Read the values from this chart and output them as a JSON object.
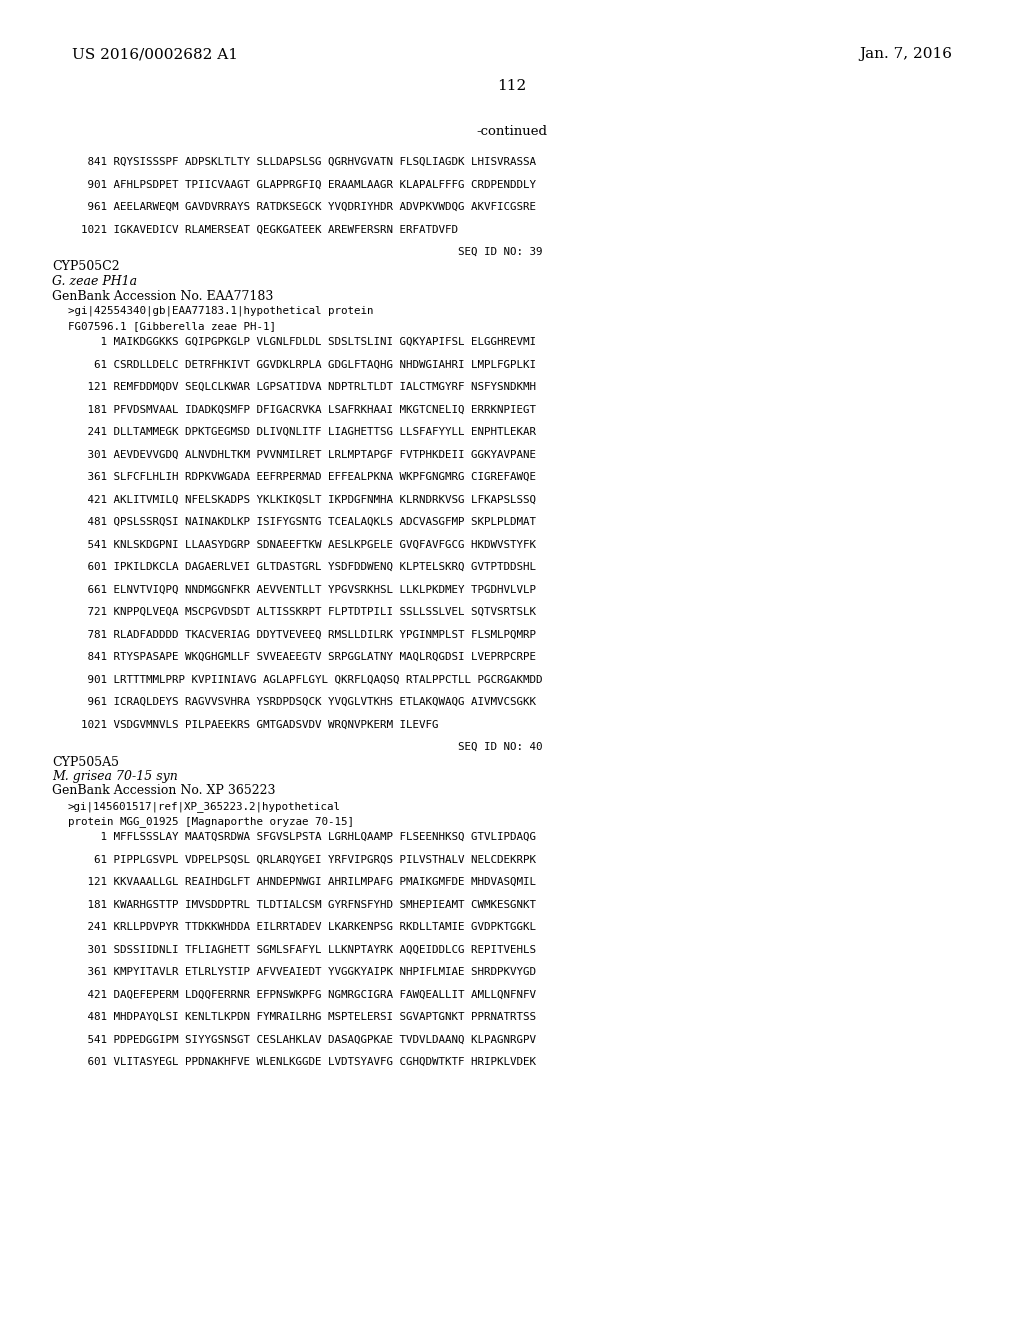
{
  "header_left": "US 2016/0002682 A1",
  "header_right": "Jan. 7, 2016",
  "page_number": "112",
  "continued": "-continued",
  "background_color": "#ffffff",
  "text_color": "#000000",
  "lines": [
    {
      "text": "   841 RQYSISSSPF ADPSKLTLTY SLLDAPSLSG QGRHVGVATN FLSQLIAGDK LHISVRASSA",
      "mono": true,
      "gap_after": true
    },
    {
      "text": "   901 AFHLPSDPET TPIICVAAGT GLAPPRGFIQ ERAAMLAAGR KLAPALFFFG CRDPENDDLY",
      "mono": true,
      "gap_after": true
    },
    {
      "text": "   961 AEELARWEQM GAVDVRRAYS RATDKSEGCK YVQDRIYHDR ADVPKVWDQG AKVFICGSRE",
      "mono": true,
      "gap_after": true
    },
    {
      "text": "  1021 IGKAVEDICV RLAMERSEAT QEGKGATEEK AREWFERSRN ERFATDVFD",
      "mono": true,
      "gap_after": true
    },
    {
      "text": "                                                            SEQ ID NO: 39",
      "mono": true,
      "gap_after": false
    },
    {
      "text": "CYP505C2",
      "mono": false,
      "gap_after": false
    },
    {
      "text": "G. zeae PH1a",
      "mono": false,
      "italic": true,
      "gap_after": false
    },
    {
      "text": "GenBank Accession No. EAA77183",
      "mono": false,
      "gap_after": false
    },
    {
      "text": ">gi|42554340|gb|EAA77183.1|hypothetical protein",
      "mono": true,
      "gap_after": false
    },
    {
      "text": "FG07596.1 [Gibberella zeae PH-1]",
      "mono": true,
      "gap_after": false
    },
    {
      "text": "     1 MAIKDGGKKS GQIPGPKGLP VLGNLFDLDL SDSLTSLINI GQKYAPIFSL ELGGHREVMI",
      "mono": true,
      "gap_after": true
    },
    {
      "text": "    61 CSRDLLDELC DETRFHKIVT GGVDKLRPLA GDGLFTAQHG NHDWGIAHRI LMPLFGPLKI",
      "mono": true,
      "gap_after": true
    },
    {
      "text": "   121 REMFDDMQDV SEQLCLKWAR LGPSATIDVA NDPTRLTLDT IALCTMGYRF NSFYSNDKMH",
      "mono": true,
      "gap_after": true
    },
    {
      "text": "   181 PFVDSMVAAL IDADKQSMFP DFIGACRVKA LSAFRKHAAI MKGTCNELIQ ERRKNPIEGT",
      "mono": true,
      "gap_after": true
    },
    {
      "text": "   241 DLLTAMMEGK DPKTGEGMSD DLIVQNLITF LIAGHETTSG LLSFAFYYLL ENPHTLEKAR",
      "mono": true,
      "gap_after": true
    },
    {
      "text": "   301 AEVDEVVGDQ ALNVDHLTKM PVVNMILRET LRLMPTAPGF FVTPHKDEII GGKYAVPANE",
      "mono": true,
      "gap_after": true
    },
    {
      "text": "   361 SLFCFLHLIH RDPKVWGADA EEFRPERMAD EFFEALPKNA WKPFGNGMRG CIGREFAWQE",
      "mono": true,
      "gap_after": true
    },
    {
      "text": "   421 AKLITVMILQ NFELSKADPS YKLKIKQSLT IKPDGFNMHA KLRNDRKVSG LFKAPSLSSQ",
      "mono": true,
      "gap_after": true
    },
    {
      "text": "   481 QPSLSSRQSI NAINAKDLKP ISIFYGSNTG TCEALAQKLS ADCVASGFMP SKPLPLDMAT",
      "mono": true,
      "gap_after": true
    },
    {
      "text": "   541 KNLSKDGPNI LLAASYDGRP SDNAEEFTKW AESLKPGELE GVQFAVFGCG HKDWVSTYFK",
      "mono": true,
      "gap_after": true
    },
    {
      "text": "   601 IPKILDKCLA DAGAERLVEI GLTDASTGRL YSDFDDWENQ KLPTELSKRQ GVTPTDDSHL",
      "mono": true,
      "gap_after": true
    },
    {
      "text": "   661 ELNVTVIQPQ NNDMGGNFKR AEVVENTLLT YPGVSRKHSL LLKLPKDMEY TPGDHVLVLP",
      "mono": true,
      "gap_after": true
    },
    {
      "text": "   721 KNPPQLVEQA MSCPGVDSDT ALTISSKRPT FLPTDTPILI SSLLSSLVEL SQTVSRTSLK",
      "mono": true,
      "gap_after": true
    },
    {
      "text": "   781 RLADFADDDD TKACVERIAG DDYTVEVEEQ RMSLLDILRK YPGINMPLST FLSMLPQMRP",
      "mono": true,
      "gap_after": true
    },
    {
      "text": "   841 RTYSPASAPE WKQGHGMLLF SVVEAEEGTV SRPGGLATNY MAQLRQGDSI LVEPRPCRPE",
      "mono": true,
      "gap_after": true
    },
    {
      "text": "   901 LRTTTMMLPRP KVPIINIAVG AGLAPFLGYL QKRFLQAQSQ RTALPPCTLL PGCRGAKMDD",
      "mono": true,
      "gap_after": true
    },
    {
      "text": "   961 ICRAQLDEYS RAGVVSVHRA YSRDPDSQCK YVQGLVTKHS ETLAKQWAQG AIVMVCSGKK",
      "mono": true,
      "gap_after": true
    },
    {
      "text": "  1021 VSDGVMNVLS PILPAEEKRS GMTGADSVDV WRQNVPKERM ILEVFG",
      "mono": true,
      "gap_after": true
    },
    {
      "text": "                                                            SEQ ID NO: 40",
      "mono": true,
      "gap_after": false
    },
    {
      "text": "CYP505A5",
      "mono": false,
      "gap_after": false
    },
    {
      "text": "M. grisea 70-15 syn",
      "mono": false,
      "italic": true,
      "gap_after": false
    },
    {
      "text": "GenBank Accession No. XP 365223",
      "mono": false,
      "gap_after": false
    },
    {
      "text": ">gi|145601517|ref|XP_365223.2|hypothetical",
      "mono": true,
      "gap_after": false
    },
    {
      "text": "protein MGG_01925 [Magnaporthe oryzae 70-15]",
      "mono": true,
      "gap_after": false
    },
    {
      "text": "     1 MFFLSSSLAY MAATQSRDWA SFGVSLPSTA LGRHLQAAMP FLSEENHKSQ GTVLIPDAQG",
      "mono": true,
      "gap_after": true
    },
    {
      "text": "    61 PIPPLGSVPL VDPELPSQSL QRLARQYGEI YRFVIPGRQS PILVSTHALV NELCDEKRPK",
      "mono": true,
      "gap_after": true
    },
    {
      "text": "   121 KKVAAALLGL REAIHDGLFT AHNDEPNWGI AHRILMPAFG PMAIKGMFDE MHDVASQMIL",
      "mono": true,
      "gap_after": true
    },
    {
      "text": "   181 KWARHGSTTP IMVSDDPTRL TLDTIALCSM GYRFNSFYHD SMHEPIEAMT CWMKESGNKT",
      "mono": true,
      "gap_after": true
    },
    {
      "text": "   241 KRLLPDVPYR TTDKKWHDDA EILRRTADEV LKARKENPSG RKDLLTAMIE GVDPKTGGKL",
      "mono": true,
      "gap_after": true
    },
    {
      "text": "   301 SDSSIIDNLI TFLIAGHETT SGMLSFAFYL LLKNPTAYRK AQQEIDDLCG REPITVEHLS",
      "mono": true,
      "gap_after": true
    },
    {
      "text": "   361 KMPYITAVLR ETLRLYSTIP AFVVEAIEDT YVGGKYAIPK NHPIFLMIAE SHRDPKVYGD",
      "mono": true,
      "gap_after": true
    },
    {
      "text": "   421 DAQEFEPERM LDQQFERRNR EFPNSWKPFG NGMRGCIGRA FAWQEALLIT AMLLQNFNFV",
      "mono": true,
      "gap_after": true
    },
    {
      "text": "   481 MHDPAYQLSI KENLTLKPDN FYMRAILRHG MSPTELERSI SGVAPTGNKT PPRNATRTSS",
      "mono": true,
      "gap_after": true
    },
    {
      "text": "   541 PDPEDGGIPM SIYYGSNSGT CESLAHKLAV DASAQGPKAE TVDVLDAANQ KLPAGNRGPV",
      "mono": true,
      "gap_after": true
    },
    {
      "text": "   601 VLITASYEGL PPDNAKHFVE WLENLKGGDE LVDTSYAVFG CGHQDWTKTF HRIPKLVDEK",
      "mono": true,
      "gap_after": false
    }
  ]
}
